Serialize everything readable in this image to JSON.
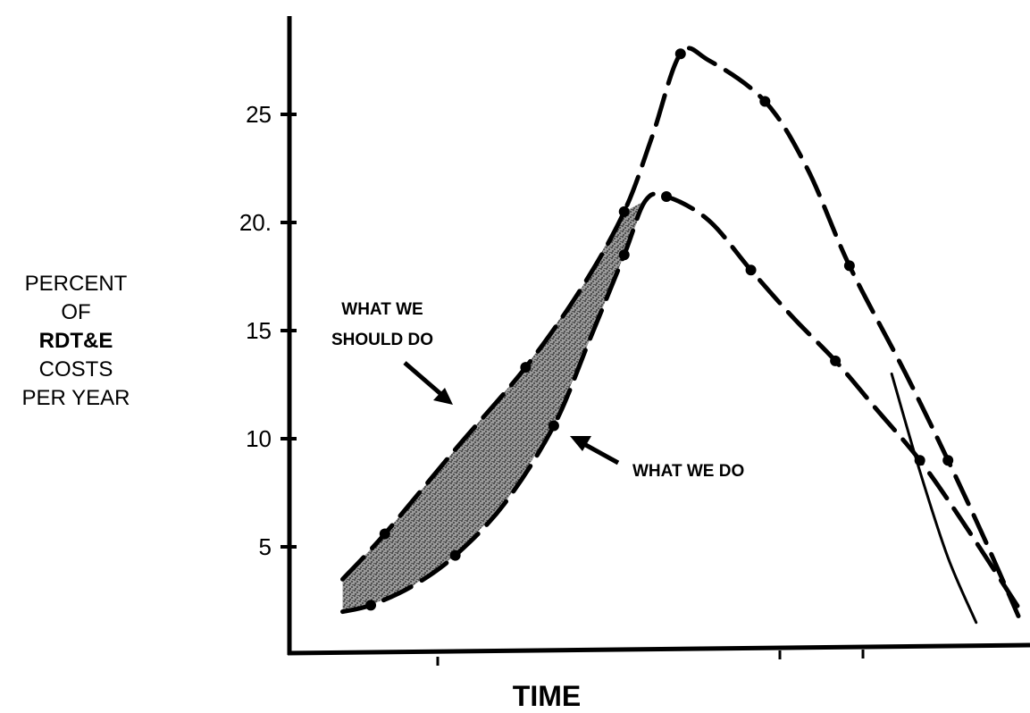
{
  "chart_data": {
    "type": "line",
    "ylabel_lines": [
      "PERCENT",
      "OF",
      "RDT&E",
      "COSTS",
      "PER YEAR"
    ],
    "xlabel": "TIME",
    "yticks": [
      5,
      10,
      15,
      20,
      25
    ],
    "ytick_labels": [
      "5",
      "10",
      "15",
      "20.",
      "25"
    ],
    "ylim": [
      0,
      30
    ],
    "xlim": [
      0,
      100
    ],
    "grid": false,
    "annotations": [
      "WHAT WE SHOULD DO",
      "WHAT WE DO"
    ],
    "series": [
      {
        "style": "dash-dot",
        "x": [
          4,
          10,
          20,
          30,
          38,
          44,
          48,
          52,
          56,
          64,
          70,
          76,
          84,
          90,
          95,
          100
        ],
        "y": [
          3.5,
          5.6,
          9.5,
          13.3,
          17.0,
          20.5,
          24.0,
          27.8,
          27.5,
          25.6,
          22.5,
          18.0,
          13.0,
          9.0,
          5.5,
          1.8
        ]
      },
      {
        "style": "dash-dot",
        "x": [
          4,
          8,
          14,
          20,
          27,
          34,
          39,
          44,
          47,
          50,
          56,
          62,
          68,
          74,
          80,
          86,
          92,
          100
        ],
        "y": [
          2.0,
          2.3,
          3.2,
          4.6,
          7.0,
          10.6,
          14.5,
          18.5,
          21.0,
          21.2,
          20.1,
          17.8,
          15.6,
          13.6,
          11.3,
          9.0,
          6.2,
          2.2
        ]
      },
      {
        "style": "solid",
        "x": [
          82,
          86,
          90,
          94
        ],
        "y": [
          13.0,
          8.5,
          4.5,
          1.5
        ]
      }
    ]
  }
}
